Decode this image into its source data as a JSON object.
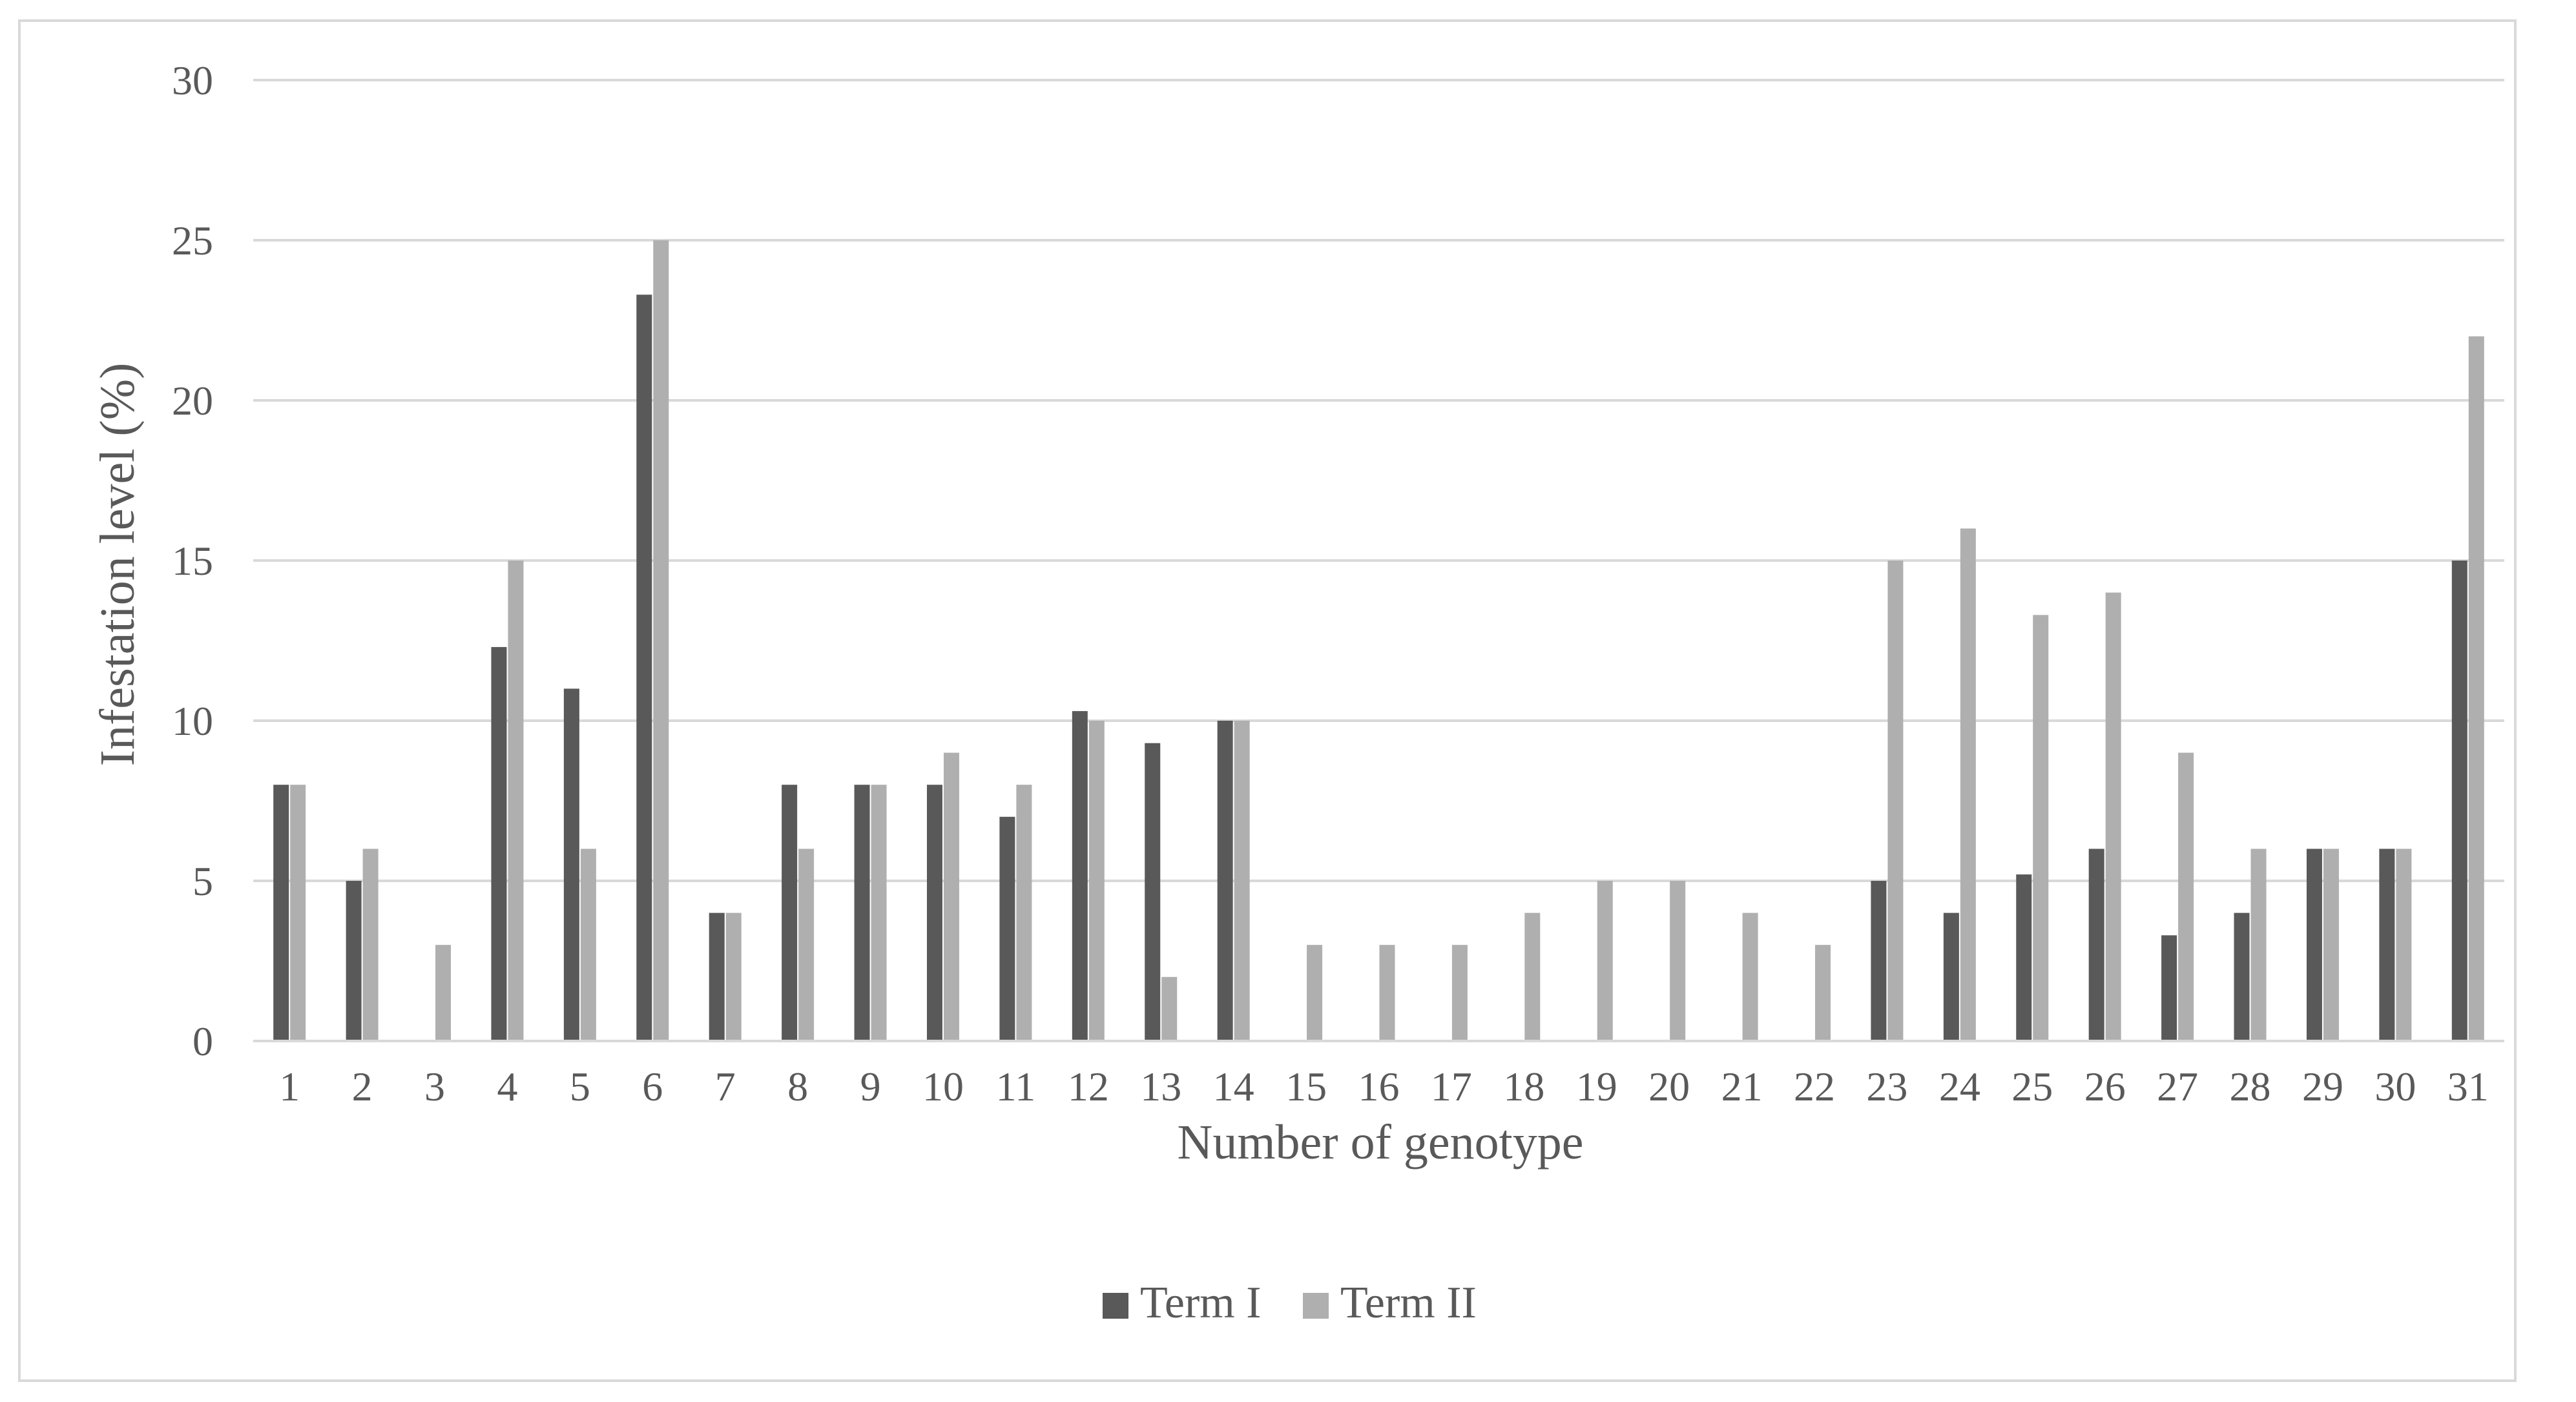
{
  "chart_data": {
    "type": "bar",
    "categories": [
      "1",
      "2",
      "3",
      "4",
      "5",
      "6",
      "7",
      "8",
      "9",
      "10",
      "11",
      "12",
      "13",
      "14",
      "15",
      "16",
      "17",
      "18",
      "19",
      "20",
      "21",
      "22",
      "23",
      "24",
      "25",
      "26",
      "27",
      "28",
      "29",
      "30",
      "31"
    ],
    "series": [
      {
        "name": "Term I",
        "color": "#595959",
        "values": [
          8,
          5,
          0,
          12.3,
          11,
          23.3,
          4,
          8,
          8,
          8,
          7,
          10.3,
          9.3,
          10,
          0,
          0,
          0,
          0,
          0,
          0,
          0,
          0,
          5,
          4,
          5.2,
          6,
          3.3,
          4,
          6,
          6,
          15
        ]
      },
      {
        "name": "Term II",
        "color": "#afafaf",
        "values": [
          8,
          6,
          3,
          15,
          6,
          25,
          4,
          6,
          8,
          9,
          8,
          10,
          2,
          10,
          3,
          3,
          3,
          4,
          5,
          5,
          4,
          3,
          15,
          16,
          13.3,
          14,
          9,
          6,
          6,
          6,
          22
        ]
      }
    ],
    "xlabel": "Number of genotype",
    "ylabel": "Infestation level (%)",
    "ylim": [
      0,
      30
    ],
    "yticks": [
      "0",
      "5",
      "10",
      "15",
      "20",
      "25",
      "30"
    ],
    "grid": true,
    "legend_position": "bottom"
  }
}
